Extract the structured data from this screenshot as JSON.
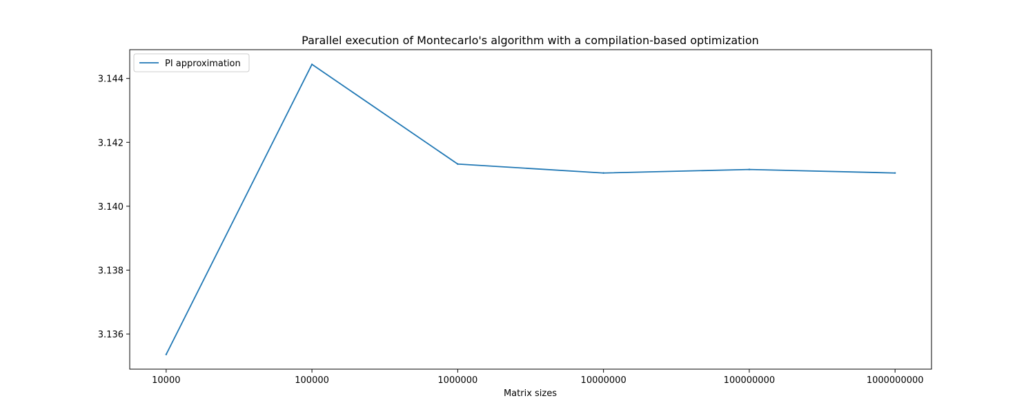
{
  "chart_data": {
    "type": "line",
    "title": "Parallel execution of Montecarlo's algorithm with a compilation-based optimization",
    "xlabel": "Matrix sizes",
    "ylabel": "",
    "categories": [
      "10000",
      "100000",
      "1000000",
      "10000000",
      "100000000",
      "1000000000"
    ],
    "series": [
      {
        "name": "PI approximation",
        "color": "#1f77b4",
        "values": [
          3.13536,
          3.14444,
          3.14132,
          3.14104,
          3.14115,
          3.14104
        ]
      }
    ],
    "ylim": [
      3.1349,
      3.1449
    ],
    "yticks": [
      3.136,
      3.138,
      3.14,
      3.142,
      3.144
    ],
    "ytick_labels": [
      "3.136",
      "3.138",
      "3.140",
      "3.142",
      "3.144"
    ],
    "grid": false,
    "legend_position": "top-left"
  }
}
